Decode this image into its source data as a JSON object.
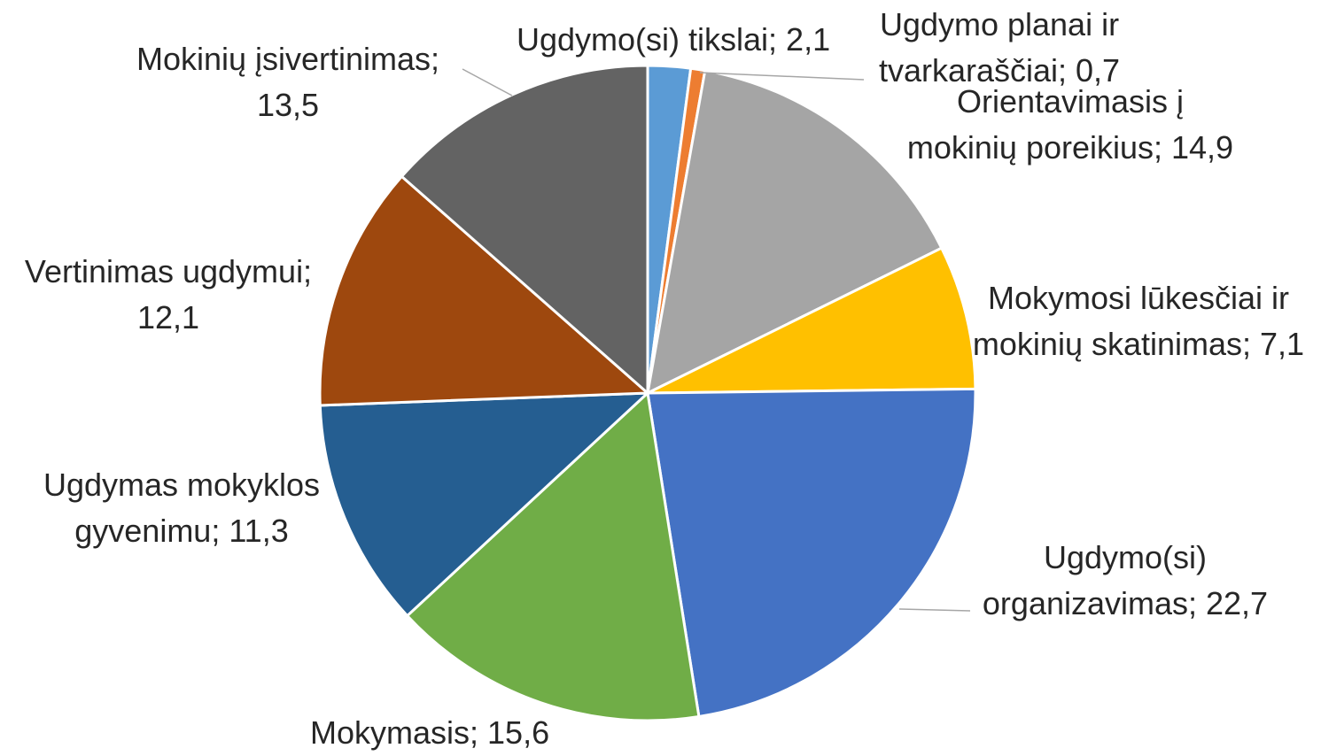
{
  "chart_data": {
    "type": "pie",
    "values": [
      2.1,
      0.7,
      14.9,
      7.1,
      22.7,
      15.6,
      11.3,
      12.1,
      13.5
    ],
    "value_labels": [
      "Ugdymo(si) tikslai; 2,1",
      "Ugdymo planai ir tvarkaraščiai; 0,7",
      "Orientavimasis į mokinių poreikius; 14,9",
      "Mokymosi lūkesčiai ir mokinių skatinimas; 7,1",
      "Ugdymo(si) organizavimas; 22,7",
      "Mokymasis; 15,6",
      "Ugdymas mokyklos gyvenimu; 11,3",
      "Vertinimas ugdymui; 12,1",
      "Mokinių įsivertinimas; 13,5"
    ],
    "colors": [
      "#5b9bd5",
      "#ed7d31",
      "#a5a5a5",
      "#ffc000",
      "#4472c4",
      "#70ad47",
      "#255e91",
      "#9e480e",
      "#636363"
    ]
  }
}
